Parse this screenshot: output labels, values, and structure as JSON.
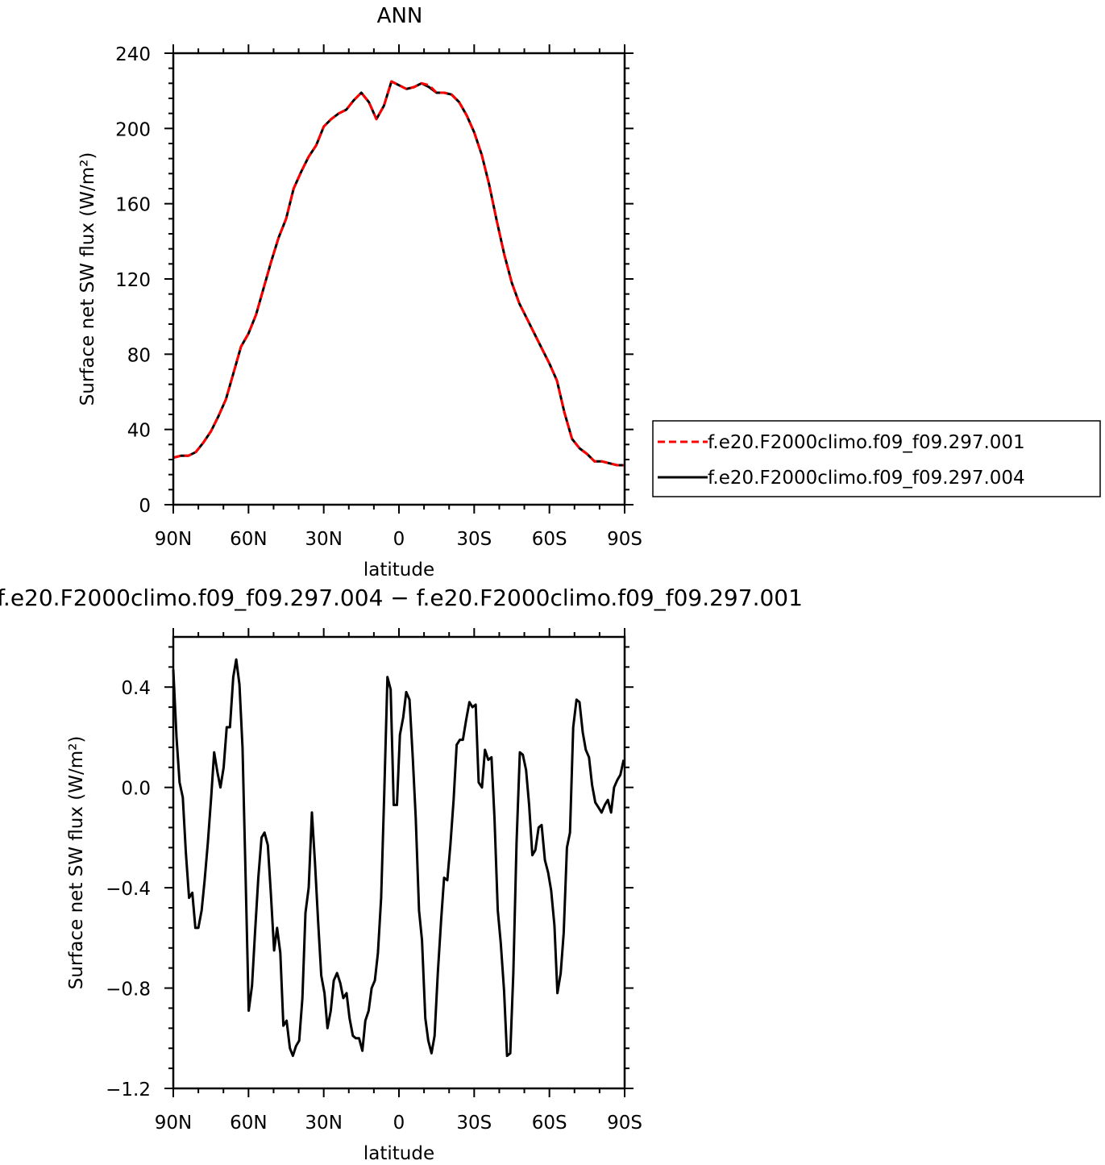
{
  "chart_data": [
    {
      "type": "line",
      "title": "ANN",
      "xlabel": "latitude",
      "ylabel": "Surface net SW flux (W/m²)",
      "xlim": [
        90,
        -90
      ],
      "ylim": [
        0,
        240
      ],
      "x_tick_values": [
        90,
        60,
        30,
        0,
        -30,
        -60,
        -90
      ],
      "x_tick_labels": [
        "90N",
        "60N",
        "30N",
        "0",
        "30S",
        "60S",
        "90S"
      ],
      "y_tick_values": [
        0,
        40,
        80,
        120,
        160,
        200,
        240
      ],
      "y_tick_labels": [
        "0",
        "40",
        "80",
        "120",
        "160",
        "200",
        "240"
      ],
      "legend_position": "right",
      "series": [
        {
          "name": "f.e20.F2000climo.f09_f09.297.001",
          "color": "#ff0000",
          "style": "dashed",
          "x": [
            90,
            87,
            84,
            81,
            78,
            75,
            72,
            69,
            66,
            63,
            60,
            57,
            54,
            51,
            48,
            45,
            42,
            39,
            36,
            33,
            30,
            27,
            24,
            21,
            18,
            15,
            12,
            9,
            6,
            3,
            0,
            -3,
            -6,
            -9,
            -12,
            -15,
            -18,
            -21,
            -24,
            -27,
            -30,
            -33,
            -36,
            -39,
            -42,
            -45,
            -48,
            -51,
            -54,
            -57,
            -60,
            -63,
            -66,
            -69,
            -72,
            -75,
            -78,
            -81,
            -84,
            -87,
            -90
          ],
          "y": [
            25,
            26,
            26,
            28,
            33,
            39,
            47,
            56,
            70,
            84,
            91,
            101,
            115,
            129,
            142,
            152,
            168,
            177,
            185,
            191,
            201,
            205,
            208,
            210,
            215,
            219,
            214,
            205,
            212,
            225,
            223,
            221,
            222,
            224,
            223,
            219,
            219,
            218,
            214,
            207,
            198,
            186,
            170,
            151,
            133,
            118,
            107,
            99,
            91,
            83,
            75,
            66,
            49,
            35,
            30,
            27,
            23,
            23,
            22,
            21,
            21
          ]
        },
        {
          "name": "f.e20.F2000climo.f09_f09.297.004",
          "color": "#000000",
          "style": "solid",
          "x": [
            90,
            87,
            84,
            81,
            78,
            75,
            72,
            69,
            66,
            63,
            60,
            57,
            54,
            51,
            48,
            45,
            42,
            39,
            36,
            33,
            30,
            27,
            24,
            21,
            18,
            15,
            12,
            9,
            6,
            3,
            0,
            -3,
            -6,
            -9,
            -12,
            -15,
            -18,
            -21,
            -24,
            -27,
            -30,
            -33,
            -36,
            -39,
            -42,
            -45,
            -48,
            -51,
            -54,
            -57,
            -60,
            -63,
            -66,
            -69,
            -72,
            -75,
            -78,
            -81,
            -84,
            -87,
            -90
          ],
          "y": [
            25,
            26,
            26,
            28,
            33,
            39,
            47,
            56,
            70,
            84,
            91,
            101,
            115,
            129,
            142,
            152,
            168,
            177,
            185,
            191,
            201,
            205,
            208,
            210,
            215,
            219,
            214,
            205,
            212,
            225,
            223,
            221,
            222,
            224,
            222,
            219,
            219,
            218,
            214,
            207,
            198,
            186,
            170,
            151,
            133,
            118,
            107,
            99,
            91,
            83,
            75,
            66,
            49,
            35,
            30,
            27,
            23,
            23,
            22,
            21,
            21
          ]
        }
      ]
    },
    {
      "type": "line",
      "title": "f.e20.F2000climo.f09_f09.297.004 − f.e20.F2000climo.f09_f09.297.001",
      "xlabel": "latitude",
      "ylabel": "Surface net SW flux (W/m²)",
      "xlim": [
        90,
        -90
      ],
      "ylim": [
        -1.2,
        0.6
      ],
      "x_tick_values": [
        90,
        60,
        30,
        0,
        -30,
        -60,
        -90
      ],
      "x_tick_labels": [
        "90N",
        "60N",
        "30N",
        "0",
        "30S",
        "60S",
        "90S"
      ],
      "y_tick_values": [
        -1.2,
        -0.8,
        -0.4,
        0.0,
        0.4
      ],
      "y_tick_labels": [
        "−1.2",
        "−0.8",
        "−0.4",
        "0.0",
        "0.4"
      ],
      "series": [
        {
          "color": "#000000",
          "style": "solid",
          "x": [
            90,
            88.7,
            87.5,
            86.2,
            85,
            83.7,
            82.4,
            81.2,
            80,
            78.7,
            77.5,
            76.2,
            74.9,
            73.7,
            72.4,
            71.2,
            69.9,
            68.7,
            67.4,
            66.1,
            64.9,
            63.6,
            62.4,
            61.1,
            59.9,
            58.6,
            57.4,
            56.1,
            54.8,
            53.6,
            52.3,
            51.1,
            49.8,
            48.6,
            47.3,
            46.1,
            44.8,
            43.5,
            42.3,
            41,
            39.8,
            38.5,
            37.3,
            36,
            34.7,
            33.5,
            32.2,
            31,
            29.7,
            28.5,
            27.2,
            26,
            24.7,
            23.4,
            22.2,
            20.9,
            19.7,
            18.4,
            17.2,
            15.9,
            14.6,
            13.4,
            12.1,
            10.9,
            9.6,
            8.4,
            7.1,
            5.9,
            4.6,
            3.3,
            2.1,
            0.8,
            -0.4,
            -1.7,
            -2.9,
            -4.2,
            -5.5,
            -6.7,
            -8,
            -9.2,
            -10.5,
            -11.7,
            -13,
            -14.2,
            -15.5,
            -16.8,
            -18,
            -19.3,
            -20.5,
            -21.8,
            -23,
            -24.3,
            -25.5,
            -26.8,
            -28.1,
            -29.3,
            -30.6,
            -31.8,
            -33.1,
            -34.3,
            -35.6,
            -36.9,
            -38.1,
            -39.4,
            -40.6,
            -41.9,
            -43.1,
            -44.4,
            -45.6,
            -46.9,
            -48.2,
            -49.4,
            -50.7,
            -51.9,
            -53.2,
            -54.4,
            -55.7,
            -56.9,
            -58.2,
            -59.5,
            -60.7,
            -62,
            -63.2,
            -64.5,
            -65.7,
            -67,
            -68.2,
            -69.5,
            -70.8,
            -72,
            -73.3,
            -74.5,
            -75.8,
            -77,
            -78.3,
            -79.6,
            -80.8,
            -82.1,
            -83.3,
            -84.6,
            -85.8,
            -87.1,
            -88.3,
            -89.6
          ],
          "y": [
            0.47,
            0.2,
            0.02,
            -0.04,
            -0.26,
            -0.44,
            -0.42,
            -0.56,
            -0.56,
            -0.49,
            -0.37,
            -0.22,
            -0.04,
            0.14,
            0.06,
            0.0,
            0.08,
            0.24,
            0.24,
            0.44,
            0.51,
            0.41,
            0.16,
            -0.38,
            -0.89,
            -0.79,
            -0.58,
            -0.36,
            -0.2,
            -0.18,
            -0.23,
            -0.42,
            -0.65,
            -0.56,
            -0.66,
            -0.95,
            -0.93,
            -1.04,
            -1.07,
            -1.03,
            -1.01,
            -0.84,
            -0.5,
            -0.4,
            -0.1,
            -0.3,
            -0.54,
            -0.75,
            -0.82,
            -0.96,
            -0.89,
            -0.77,
            -0.74,
            -0.78,
            -0.84,
            -0.82,
            -0.92,
            -0.99,
            -1.0,
            -1.0,
            -1.05,
            -0.93,
            -0.89,
            -0.8,
            -0.77,
            -0.66,
            -0.44,
            -0.04,
            0.44,
            0.39,
            -0.07,
            -0.07,
            0.21,
            0.28,
            0.38,
            0.35,
            0.12,
            -0.12,
            -0.49,
            -0.61,
            -0.92,
            -1.01,
            -1.06,
            -0.99,
            -0.74,
            -0.53,
            -0.36,
            -0.37,
            -0.23,
            -0.05,
            0.17,
            0.19,
            0.19,
            0.27,
            0.34,
            0.32,
            0.33,
            0.02,
            0.0,
            0.15,
            0.11,
            0.12,
            -0.12,
            -0.49,
            -0.62,
            -0.81,
            -1.07,
            -1.06,
            -0.74,
            -0.22,
            0.14,
            0.13,
            0.07,
            -0.07,
            -0.27,
            -0.25,
            -0.16,
            -0.15,
            -0.29,
            -0.34,
            -0.41,
            -0.55,
            -0.82,
            -0.74,
            -0.58,
            -0.24,
            -0.18,
            0.24,
            0.35,
            0.34,
            0.22,
            0.15,
            0.12,
            0.01,
            -0.06,
            -0.08,
            -0.1,
            -0.07,
            -0.05,
            -0.1,
            0.0,
            0.03,
            0.05,
            0.11
          ]
        }
      ]
    }
  ]
}
